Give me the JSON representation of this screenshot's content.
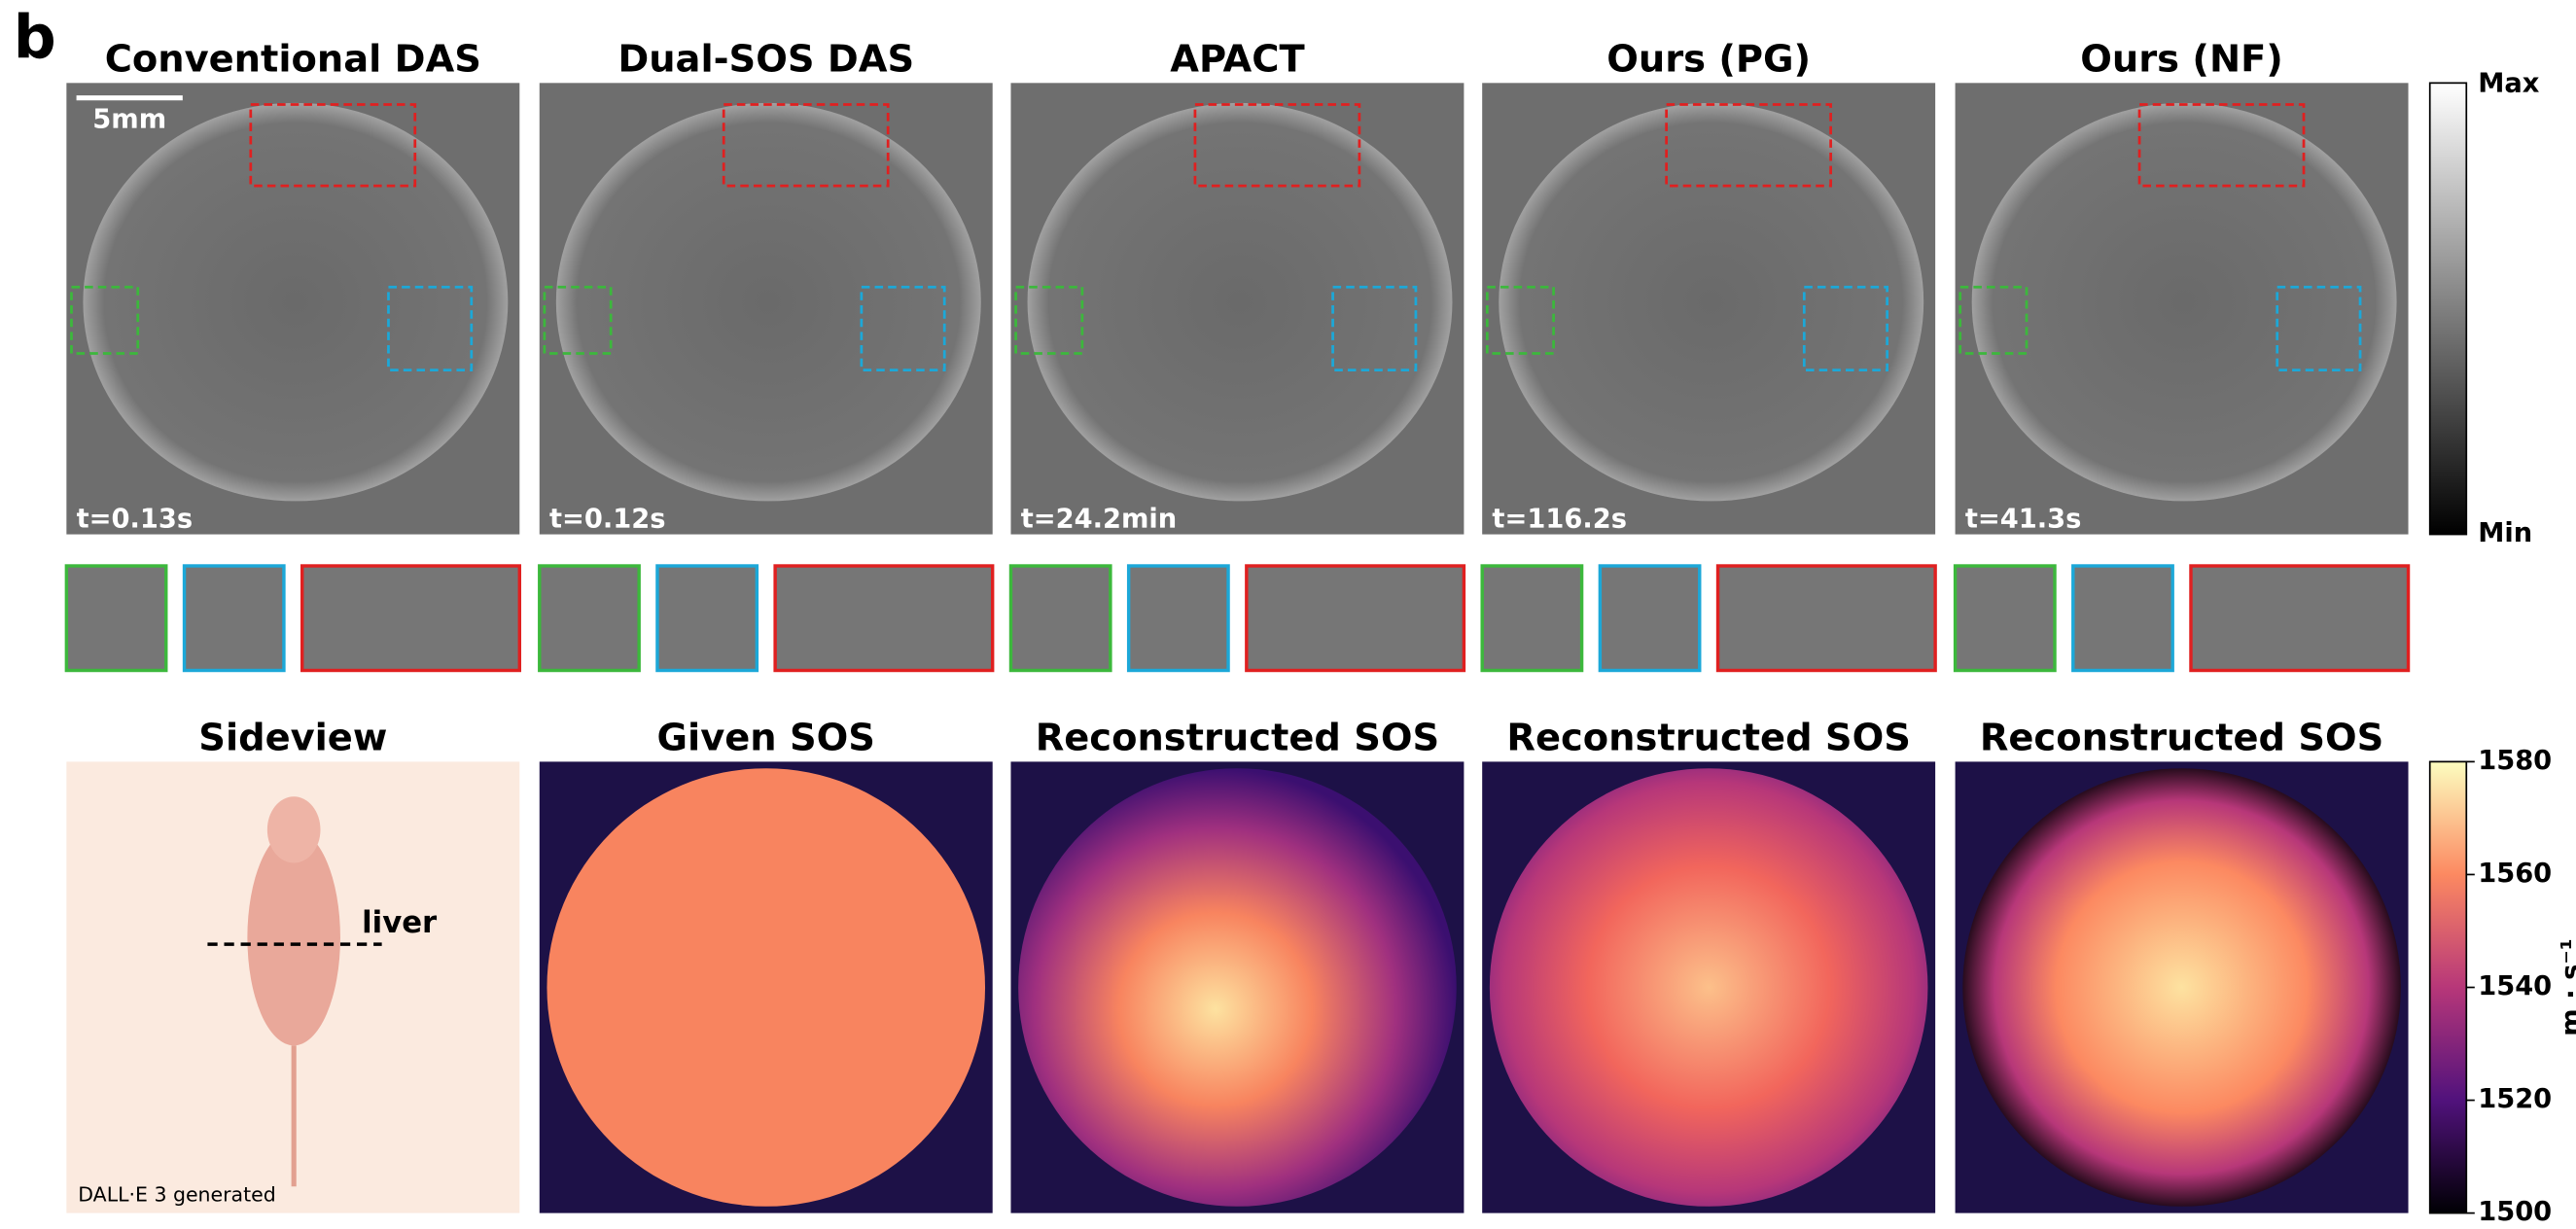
{
  "panel_label": "b",
  "top_row": {
    "scale_bar": "5mm",
    "titles": [
      "Conventional DAS",
      "Dual-SOS DAS",
      "APACT",
      "Ours (PG)",
      "Ours (NF)"
    ],
    "times": [
      "t=0.13s",
      "t=0.12s",
      "t=24.2min",
      "t=116.2s",
      "t=41.3s"
    ]
  },
  "colorbar_gray": {
    "max": "Max",
    "min": "Min"
  },
  "bottom_row": {
    "titles": [
      "Sideview",
      "Given SOS",
      "Reconstructed SOS",
      "Reconstructed SOS",
      "Reconstructed SOS"
    ],
    "annotation": "liver",
    "credit": "DALL·E 3 generated"
  },
  "colorbar_sos": {
    "ylim": [
      1500,
      1580
    ],
    "yticks": [
      1500,
      1520,
      1540,
      1560,
      1580
    ],
    "label": "m · s⁻¹"
  }
}
